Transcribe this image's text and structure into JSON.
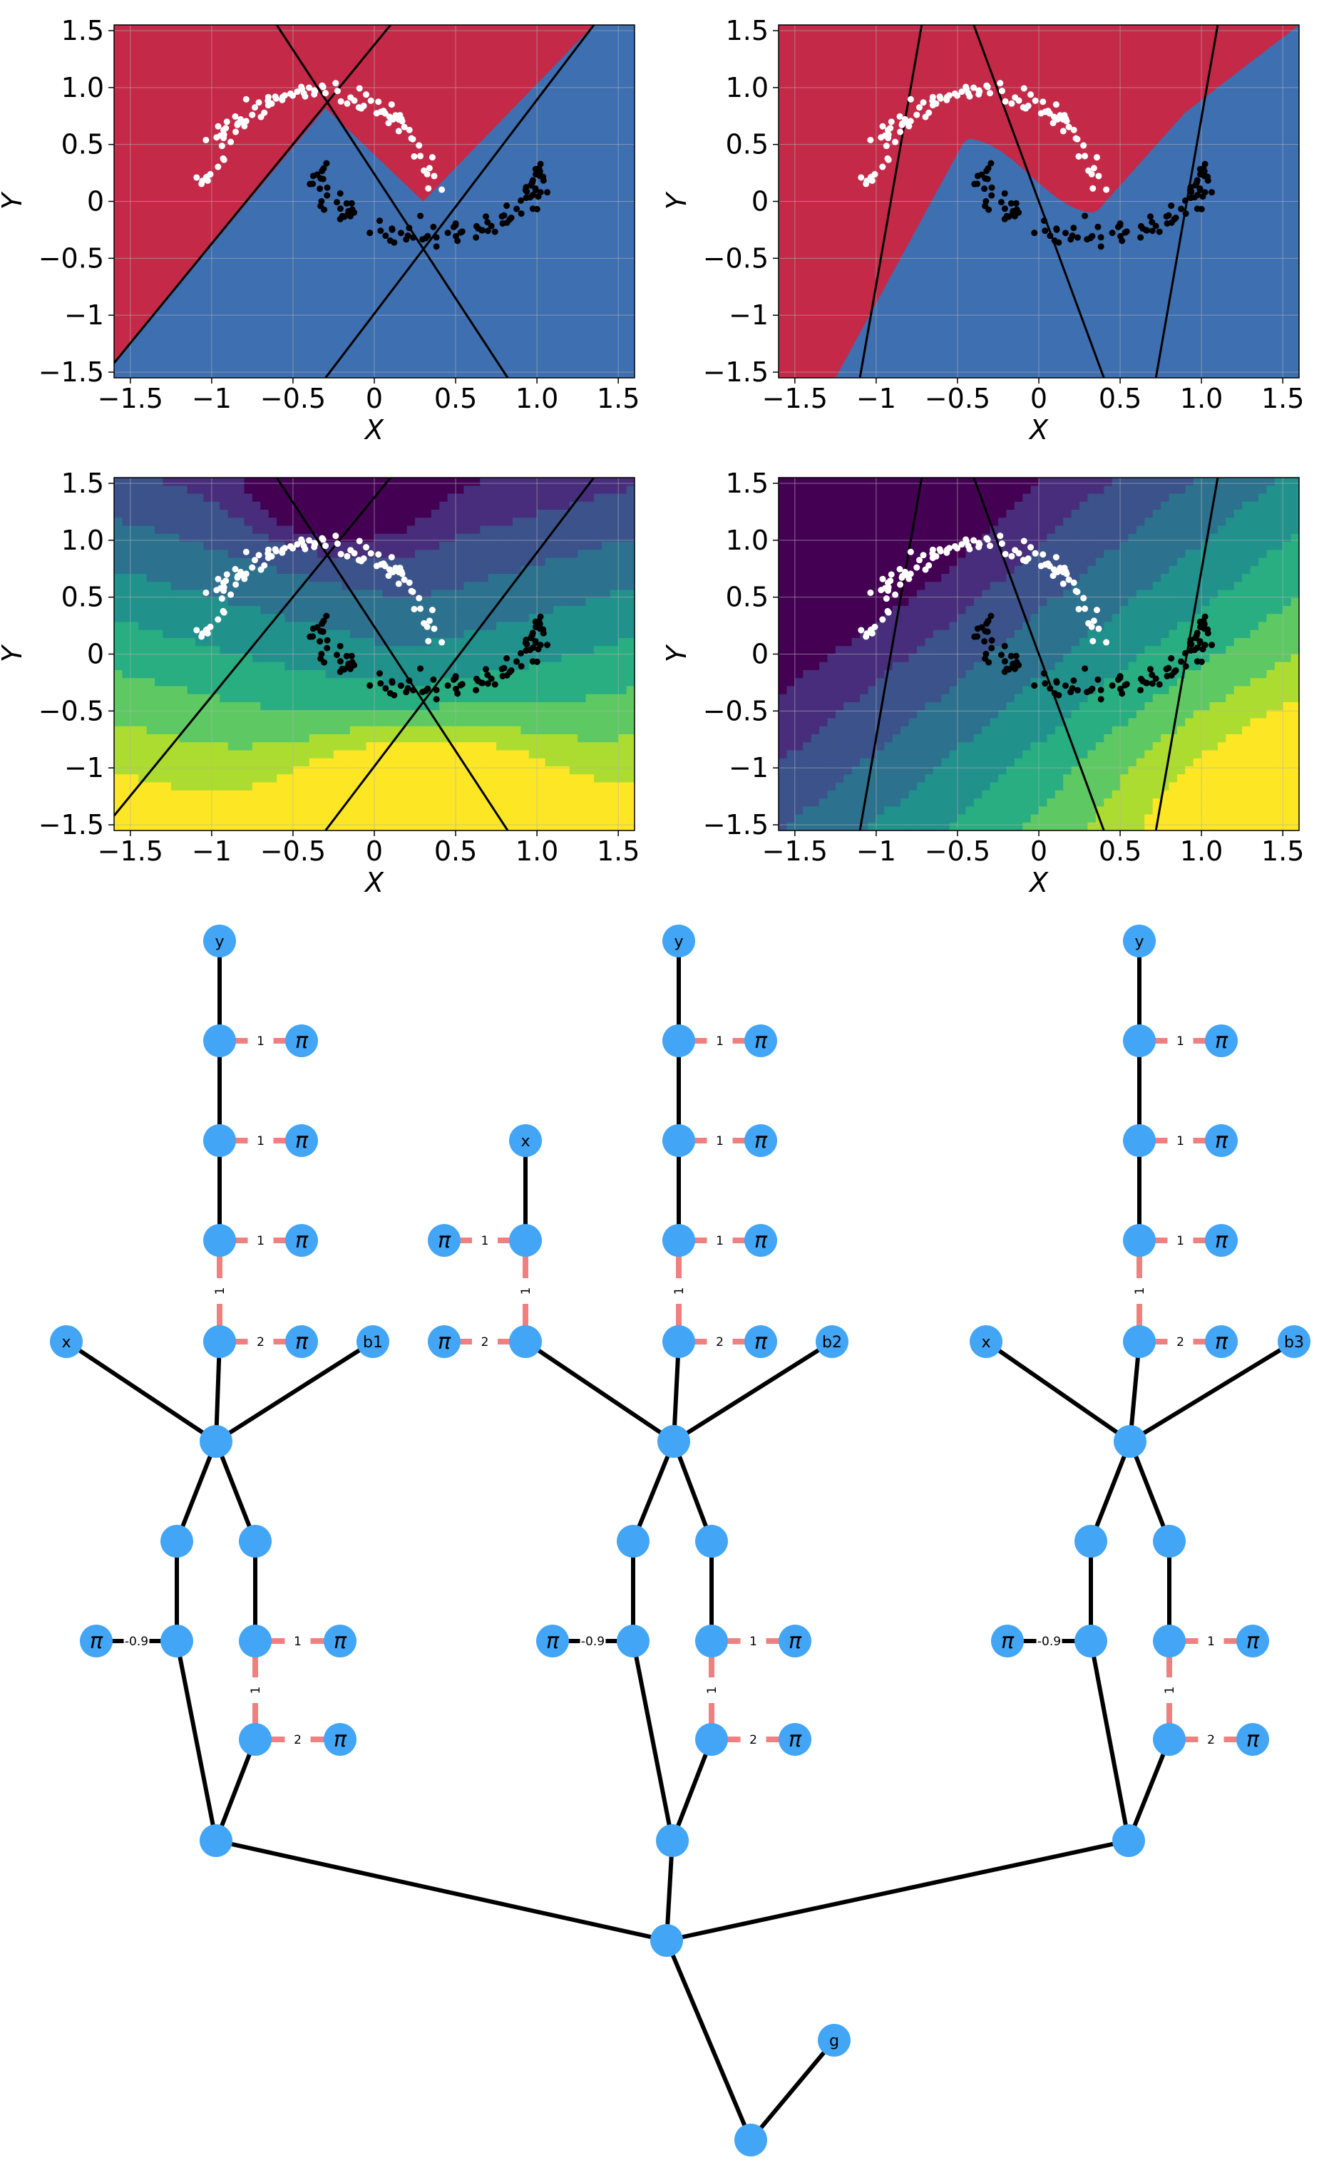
{
  "panels": [
    {
      "id": "p1",
      "mode": "class",
      "xlabel": "X",
      "ylabel": "Y",
      "xlim": [
        -1.6,
        1.6
      ],
      "ylim": [
        -1.55,
        1.55
      ],
      "xticks": [
        "−1.5",
        "−1",
        "−0.5",
        "0",
        "0.5",
        "1.0",
        "1.5"
      ],
      "yticks": [
        "1.5",
        "1.0",
        "0.5",
        "0",
        "−0.5",
        "−1",
        "−1.5"
      ],
      "lines": [
        [
          [
            -0.6,
            1.55
          ],
          [
            0.82,
            -1.55
          ]
        ],
        [
          [
            -1.6,
            -1.42
          ],
          [
            0.1,
            1.55
          ]
        ],
        [
          [
            -0.3,
            -1.55
          ],
          [
            1.35,
            1.55
          ]
        ]
      ]
    },
    {
      "id": "p2",
      "mode": "class",
      "xlabel": "X",
      "ylabel": "Y",
      "xlim": [
        -1.6,
        1.6
      ],
      "ylim": [
        -1.55,
        1.55
      ],
      "xticks": [
        "−1.5",
        "−1",
        "−0.5",
        "0",
        "0.5",
        "1.0",
        "1.5"
      ],
      "yticks": [
        "1.5",
        "1.0",
        "0.5",
        "0",
        "−0.5",
        "−1",
        "−1.5"
      ],
      "lines": [
        [
          [
            -1.1,
            -1.55
          ],
          [
            -0.72,
            1.55
          ]
        ],
        [
          [
            -0.4,
            1.55
          ],
          [
            0.4,
            -1.55
          ]
        ],
        [
          [
            0.72,
            -1.55
          ],
          [
            1.1,
            1.55
          ]
        ]
      ]
    },
    {
      "id": "p3",
      "mode": "field",
      "xlabel": "X",
      "ylabel": "Y",
      "xlim": [
        -1.6,
        1.6
      ],
      "ylim": [
        -1.55,
        1.55
      ],
      "xticks": [
        "−1.5",
        "−1",
        "−0.5",
        "0",
        "0.5",
        "1.0",
        "1.5"
      ],
      "yticks": [
        "1.5",
        "1.0",
        "0.5",
        "0",
        "−0.5",
        "−1",
        "−1.5"
      ],
      "lines": [
        [
          [
            -0.6,
            1.55
          ],
          [
            0.82,
            -1.55
          ]
        ],
        [
          [
            -1.6,
            -1.42
          ],
          [
            0.1,
            1.55
          ]
        ],
        [
          [
            -0.3,
            -1.55
          ],
          [
            1.35,
            1.55
          ]
        ]
      ]
    },
    {
      "id": "p4",
      "mode": "field",
      "xlabel": "X",
      "ylabel": "Y",
      "xlim": [
        -1.6,
        1.6
      ],
      "ylim": [
        -1.55,
        1.55
      ],
      "xticks": [
        "−1.5",
        "−1",
        "−0.5",
        "0",
        "0.5",
        "1.0",
        "1.5"
      ],
      "yticks": [
        "1.5",
        "1.0",
        "0.5",
        "0",
        "−0.5",
        "−1",
        "−1.5"
      ],
      "lines": [
        [
          [
            -1.1,
            -1.55
          ],
          [
            -0.72,
            1.55
          ]
        ],
        [
          [
            -0.4,
            1.55
          ],
          [
            0.4,
            -1.55
          ]
        ],
        [
          [
            0.72,
            -1.55
          ],
          [
            1.1,
            1.55
          ]
        ]
      ]
    }
  ],
  "colors": {
    "class_red": "#c42a48",
    "class_blue": "#3e6fb0",
    "node": "#42a5f5",
    "edge": "#000000",
    "pink_edge": "#f08080",
    "white_points": "#ffffff",
    "black_points": "#000000"
  },
  "graph": {
    "nodes": [
      {
        "id": "y1",
        "label": "y"
      },
      {
        "id": "a1",
        "label": ""
      },
      {
        "id": "p1a",
        "label": "π"
      },
      {
        "id": "a2",
        "label": ""
      },
      {
        "id": "p1b",
        "label": "π"
      },
      {
        "id": "a3",
        "label": ""
      },
      {
        "id": "p1c",
        "label": "π"
      },
      {
        "id": "a4",
        "label": ""
      },
      {
        "id": "p1d",
        "label": "π"
      },
      {
        "id": "x1",
        "label": "x"
      },
      {
        "id": "b1",
        "label": "b1"
      },
      {
        "id": "h1",
        "label": ""
      },
      {
        "id": "l1",
        "label": ""
      },
      {
        "id": "r1",
        "label": ""
      },
      {
        "id": "l1b",
        "label": ""
      },
      {
        "id": "pl1",
        "label": "π"
      },
      {
        "id": "r1b",
        "label": ""
      },
      {
        "id": "pr1",
        "label": "π"
      },
      {
        "id": "r1c",
        "label": ""
      },
      {
        "id": "pr1c",
        "label": "π"
      },
      {
        "id": "s1",
        "label": ""
      },
      {
        "id": "x2",
        "label": "x"
      },
      {
        "id": "c1",
        "label": ""
      },
      {
        "id": "pc1",
        "label": "π"
      },
      {
        "id": "c2",
        "label": ""
      },
      {
        "id": "pc2",
        "label": "π"
      },
      {
        "id": "y2",
        "label": "y"
      },
      {
        "id": "d1",
        "label": ""
      },
      {
        "id": "p2a",
        "label": "π"
      },
      {
        "id": "d2",
        "label": ""
      },
      {
        "id": "p2b",
        "label": "π"
      },
      {
        "id": "d3",
        "label": ""
      },
      {
        "id": "p2c",
        "label": "π"
      },
      {
        "id": "d4",
        "label": ""
      },
      {
        "id": "p2d",
        "label": "π"
      },
      {
        "id": "b2",
        "label": "b2"
      },
      {
        "id": "h2",
        "label": ""
      },
      {
        "id": "l2",
        "label": ""
      },
      {
        "id": "r2",
        "label": ""
      },
      {
        "id": "l2b",
        "label": ""
      },
      {
        "id": "pl2",
        "label": "π"
      },
      {
        "id": "r2b",
        "label": ""
      },
      {
        "id": "pr2",
        "label": "π"
      },
      {
        "id": "r2c",
        "label": ""
      },
      {
        "id": "pr2c",
        "label": "π"
      },
      {
        "id": "s2",
        "label": ""
      },
      {
        "id": "y3",
        "label": "y"
      },
      {
        "id": "e1",
        "label": ""
      },
      {
        "id": "p3a",
        "label": "π"
      },
      {
        "id": "e2",
        "label": ""
      },
      {
        "id": "p3b",
        "label": "π"
      },
      {
        "id": "e3",
        "label": ""
      },
      {
        "id": "p3c",
        "label": "π"
      },
      {
        "id": "e4",
        "label": ""
      },
      {
        "id": "p3d",
        "label": "π"
      },
      {
        "id": "x3",
        "label": "x"
      },
      {
        "id": "b3",
        "label": "b3"
      },
      {
        "id": "h3",
        "label": ""
      },
      {
        "id": "l3",
        "label": ""
      },
      {
        "id": "r3",
        "label": ""
      },
      {
        "id": "l3b",
        "label": ""
      },
      {
        "id": "pl3",
        "label": "π"
      },
      {
        "id": "r3b",
        "label": ""
      },
      {
        "id": "pr3",
        "label": "π"
      },
      {
        "id": "r3c",
        "label": ""
      },
      {
        "id": "pr3c",
        "label": "π"
      },
      {
        "id": "s3",
        "label": ""
      },
      {
        "id": "root",
        "label": ""
      },
      {
        "id": "bot",
        "label": ""
      },
      {
        "id": "g",
        "label": "g"
      }
    ],
    "edges": [
      {
        "a": "y1",
        "b": "a1",
        "kind": "black",
        "label": ""
      },
      {
        "a": "a1",
        "b": "p1a",
        "kind": "pink",
        "label": "1"
      },
      {
        "a": "a1",
        "b": "a2",
        "kind": "black",
        "label": ""
      },
      {
        "a": "a2",
        "b": "p1b",
        "kind": "pink",
        "label": "1"
      },
      {
        "a": "a2",
        "b": "a3",
        "kind": "black",
        "label": ""
      },
      {
        "a": "a3",
        "b": "p1c",
        "kind": "pink",
        "label": "1"
      },
      {
        "a": "a3",
        "b": "a4",
        "kind": "pink",
        "label": "1"
      },
      {
        "a": "a4",
        "b": "p1d",
        "kind": "pink",
        "label": "2"
      },
      {
        "a": "a4",
        "b": "h1",
        "kind": "black",
        "label": ""
      },
      {
        "a": "x1",
        "b": "h1",
        "kind": "black",
        "label": ""
      },
      {
        "a": "b1",
        "b": "h1",
        "kind": "black",
        "label": ""
      },
      {
        "a": "h1",
        "b": "l1",
        "kind": "black",
        "label": ""
      },
      {
        "a": "h1",
        "b": "r1",
        "kind": "black",
        "label": ""
      },
      {
        "a": "l1",
        "b": "l1b",
        "kind": "black",
        "label": ""
      },
      {
        "a": "pl1",
        "b": "l1b",
        "kind": "black",
        "label": "-0.9"
      },
      {
        "a": "r1",
        "b": "r1b",
        "kind": "black",
        "label": ""
      },
      {
        "a": "r1b",
        "b": "pr1",
        "kind": "pink",
        "label": "1"
      },
      {
        "a": "r1b",
        "b": "r1c",
        "kind": "pink",
        "label": "1"
      },
      {
        "a": "r1c",
        "b": "pr1c",
        "kind": "pink",
        "label": "2"
      },
      {
        "a": "l1b",
        "b": "s1",
        "kind": "black",
        "label": ""
      },
      {
        "a": "r1c",
        "b": "s1",
        "kind": "black",
        "label": ""
      },
      {
        "a": "x2",
        "b": "c1",
        "kind": "black",
        "label": ""
      },
      {
        "a": "pc1",
        "b": "c1",
        "kind": "pink",
        "label": "1"
      },
      {
        "a": "c1",
        "b": "c2",
        "kind": "pink",
        "label": "1"
      },
      {
        "a": "pc2",
        "b": "c2",
        "kind": "pink",
        "label": "2"
      },
      {
        "a": "y2",
        "b": "d1",
        "kind": "black",
        "label": ""
      },
      {
        "a": "d1",
        "b": "p2a",
        "kind": "pink",
        "label": "1"
      },
      {
        "a": "d1",
        "b": "d2",
        "kind": "black",
        "label": ""
      },
      {
        "a": "d2",
        "b": "p2b",
        "kind": "pink",
        "label": "1"
      },
      {
        "a": "d2",
        "b": "d3",
        "kind": "black",
        "label": ""
      },
      {
        "a": "d3",
        "b": "p2c",
        "kind": "pink",
        "label": "1"
      },
      {
        "a": "d3",
        "b": "d4",
        "kind": "pink",
        "label": "1"
      },
      {
        "a": "d4",
        "b": "p2d",
        "kind": "pink",
        "label": "2"
      },
      {
        "a": "d4",
        "b": "h2",
        "kind": "black",
        "label": ""
      },
      {
        "a": "c2",
        "b": "h2",
        "kind": "black",
        "label": ""
      },
      {
        "a": "b2",
        "b": "h2",
        "kind": "black",
        "label": ""
      },
      {
        "a": "h2",
        "b": "l2",
        "kind": "black",
        "label": ""
      },
      {
        "a": "h2",
        "b": "r2",
        "kind": "black",
        "label": ""
      },
      {
        "a": "l2",
        "b": "l2b",
        "kind": "black",
        "label": ""
      },
      {
        "a": "pl2",
        "b": "l2b",
        "kind": "black",
        "label": "-0.9"
      },
      {
        "a": "r2",
        "b": "r2b",
        "kind": "black",
        "label": ""
      },
      {
        "a": "r2b",
        "b": "pr2",
        "kind": "pink",
        "label": "1"
      },
      {
        "a": "r2b",
        "b": "r2c",
        "kind": "pink",
        "label": "1"
      },
      {
        "a": "r2c",
        "b": "pr2c",
        "kind": "pink",
        "label": "2"
      },
      {
        "a": "l2b",
        "b": "s2",
        "kind": "black",
        "label": ""
      },
      {
        "a": "r2c",
        "b": "s2",
        "kind": "black",
        "label": ""
      },
      {
        "a": "y3",
        "b": "e1",
        "kind": "black",
        "label": ""
      },
      {
        "a": "e1",
        "b": "p3a",
        "kind": "pink",
        "label": "1"
      },
      {
        "a": "e1",
        "b": "e2",
        "kind": "black",
        "label": ""
      },
      {
        "a": "e2",
        "b": "p3b",
        "kind": "pink",
        "label": "1"
      },
      {
        "a": "e2",
        "b": "e3",
        "kind": "black",
        "label": ""
      },
      {
        "a": "e3",
        "b": "p3c",
        "kind": "pink",
        "label": "1"
      },
      {
        "a": "e3",
        "b": "e4",
        "kind": "pink",
        "label": "1"
      },
      {
        "a": "e4",
        "b": "p3d",
        "kind": "pink",
        "label": "2"
      },
      {
        "a": "e4",
        "b": "h3",
        "kind": "black",
        "label": ""
      },
      {
        "a": "x3",
        "b": "h3",
        "kind": "black",
        "label": ""
      },
      {
        "a": "b3",
        "b": "h3",
        "kind": "black",
        "label": ""
      },
      {
        "a": "h3",
        "b": "l3",
        "kind": "black",
        "label": ""
      },
      {
        "a": "h3",
        "b": "r3",
        "kind": "black",
        "label": ""
      },
      {
        "a": "l3",
        "b": "l3b",
        "kind": "black",
        "label": ""
      },
      {
        "a": "pl3",
        "b": "l3b",
        "kind": "black",
        "label": "-0.9"
      },
      {
        "a": "r3",
        "b": "r3b",
        "kind": "black",
        "label": ""
      },
      {
        "a": "r3b",
        "b": "pr3",
        "kind": "pink",
        "label": "1"
      },
      {
        "a": "r3b",
        "b": "r3c",
        "kind": "pink",
        "label": "1"
      },
      {
        "a": "r3c",
        "b": "pr3c",
        "kind": "pink",
        "label": "2"
      },
      {
        "a": "l3b",
        "b": "s3",
        "kind": "black",
        "label": ""
      },
      {
        "a": "r3c",
        "b": "s3",
        "kind": "black",
        "label": ""
      },
      {
        "a": "s1",
        "b": "root",
        "kind": "black",
        "label": ""
      },
      {
        "a": "s2",
        "b": "root",
        "kind": "black",
        "label": ""
      },
      {
        "a": "s3",
        "b": "root",
        "kind": "black",
        "label": ""
      },
      {
        "a": "root",
        "b": "bot",
        "kind": "black",
        "label": ""
      },
      {
        "a": "bot",
        "b": "g",
        "kind": "black",
        "label": ""
      }
    ]
  }
}
